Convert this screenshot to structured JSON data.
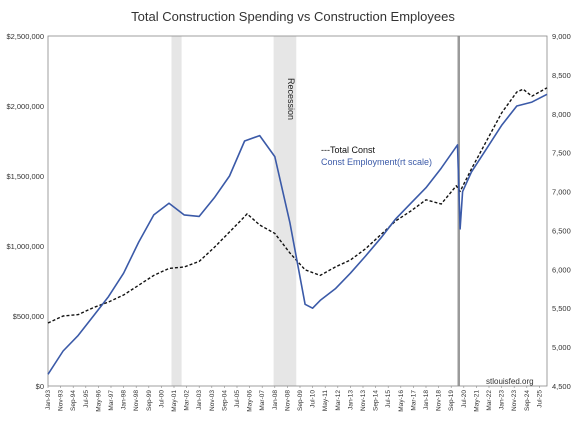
{
  "chart_data": {
    "type": "line",
    "title": "Total Construction Spending vs Construction Employees",
    "source": "stlouisfed.org",
    "recession_label": "Recession",
    "legend_placement": "center",
    "grid": false,
    "colors": {
      "total_const": "#111111",
      "employment": "#3b5aa8",
      "recession": "#e6e6e6",
      "spike": "#9a9a9a"
    },
    "y_left": {
      "range": [
        0,
        2500000
      ],
      "tick_values": [
        0,
        500000,
        1000000,
        1500000,
        2000000,
        2500000
      ],
      "tick_labels": [
        "$0",
        "$500,000",
        "$1,000,000",
        "$1,500,000",
        "$2,000,000",
        "$2,500,000"
      ]
    },
    "y_right": {
      "range": [
        4500,
        9000
      ],
      "tick_values": [
        4500,
        5000,
        5500,
        6000,
        6500,
        7000,
        7500,
        8000,
        8500,
        9000
      ],
      "tick_labels": [
        "4,500",
        "5,000",
        "5,500",
        "6,000",
        "6,500",
        "7,000",
        "7,500",
        "8,000",
        "8,500",
        "9,000"
      ]
    },
    "x_axis": {
      "range": [
        "Jan-93",
        "Jan-26"
      ],
      "tick_labels": [
        "Jan-93",
        "Nov-93",
        "Sep-94",
        "Jul-95",
        "May-96",
        "Mar-97",
        "Jan-98",
        "Nov-98",
        "Sep-99",
        "Jul-00",
        "May-01",
        "Mar-02",
        "Jan-03",
        "Nov-03",
        "Sep-04",
        "Jul-05",
        "May-06",
        "Mar-07",
        "Jan-08",
        "Nov-08",
        "Sep-09",
        "Jul-10",
        "May-11",
        "Mar-12",
        "Jan-13",
        "Nov-13",
        "Sep-14",
        "Jul-15",
        "May-16",
        "Mar-17",
        "Jan-18",
        "Nov-18",
        "Sep-19",
        "Jul-20",
        "May-21",
        "Mar-22",
        "Jan-23",
        "Nov-23",
        "Sep-24",
        "Jul-25"
      ]
    },
    "recessions": [
      {
        "start": "Mar-01",
        "end": "Nov-01"
      },
      {
        "start": "Dec-07",
        "end": "Jun-09"
      },
      {
        "start": "Feb-20",
        "end": "Apr-20"
      }
    ],
    "series": [
      {
        "name": "Total Const",
        "legend_label": "---Total Const",
        "axis": "left",
        "style": "dashed",
        "x": [
          "Jan-93",
          "Jan-94",
          "Jan-95",
          "Jan-96",
          "Jan-97",
          "Jan-98",
          "Jan-99",
          "Jan-00",
          "Jan-01",
          "Jan-02",
          "Jan-03",
          "Jan-04",
          "Jan-05",
          "Jan-06",
          "Mar-06",
          "Jan-07",
          "Jan-08",
          "Jan-09",
          "Jan-10",
          "Jan-11",
          "Jan-12",
          "Jan-13",
          "Jan-14",
          "Jan-15",
          "Jan-16",
          "Jan-17",
          "Jan-18",
          "Jan-19",
          "Jan-20",
          "Apr-20",
          "Jan-21",
          "Jan-22",
          "Jan-23",
          "Jan-24",
          "Jun-24",
          "Jan-25",
          "Jan-26"
        ],
        "values": [
          450000,
          500000,
          510000,
          560000,
          600000,
          650000,
          720000,
          790000,
          840000,
          850000,
          890000,
          990000,
          1100000,
          1210000,
          1230000,
          1150000,
          1090000,
          950000,
          830000,
          790000,
          850000,
          900000,
          980000,
          1080000,
          1180000,
          1250000,
          1330000,
          1300000,
          1430000,
          1390000,
          1550000,
          1750000,
          1950000,
          2100000,
          2120000,
          2070000,
          2130000
        ]
      },
      {
        "name": "Const Employment(rt scale)",
        "legend_label": "Const Employment(rt scale)",
        "axis": "right",
        "style": "solid",
        "x": [
          "Jan-93",
          "Jan-94",
          "Jan-95",
          "Jan-96",
          "Jan-97",
          "Jan-98",
          "Jan-99",
          "Jan-00",
          "Jan-01",
          "Jan-02",
          "Jan-03",
          "Jan-04",
          "Jan-05",
          "Jan-06",
          "Jan-07",
          "Jan-08",
          "Jan-09",
          "Jan-10",
          "Jul-10",
          "Jan-11",
          "Jan-12",
          "Jan-13",
          "Jan-14",
          "Jan-15",
          "Jan-16",
          "Jan-17",
          "Jan-18",
          "Jan-19",
          "Feb-20",
          "Apr-20",
          "Jun-20",
          "Jan-21",
          "Jan-22",
          "Jan-23",
          "Jan-24",
          "Jan-25",
          "Jan-26"
        ],
        "values": [
          4650,
          4950,
          5150,
          5400,
          5650,
          5950,
          6350,
          6700,
          6850,
          6700,
          6680,
          6920,
          7200,
          7650,
          7720,
          7450,
          6600,
          5550,
          5500,
          5600,
          5750,
          5950,
          6170,
          6400,
          6650,
          6850,
          7050,
          7300,
          7600,
          6520,
          7000,
          7250,
          7550,
          7850,
          8100,
          8150,
          8250
        ]
      }
    ]
  }
}
